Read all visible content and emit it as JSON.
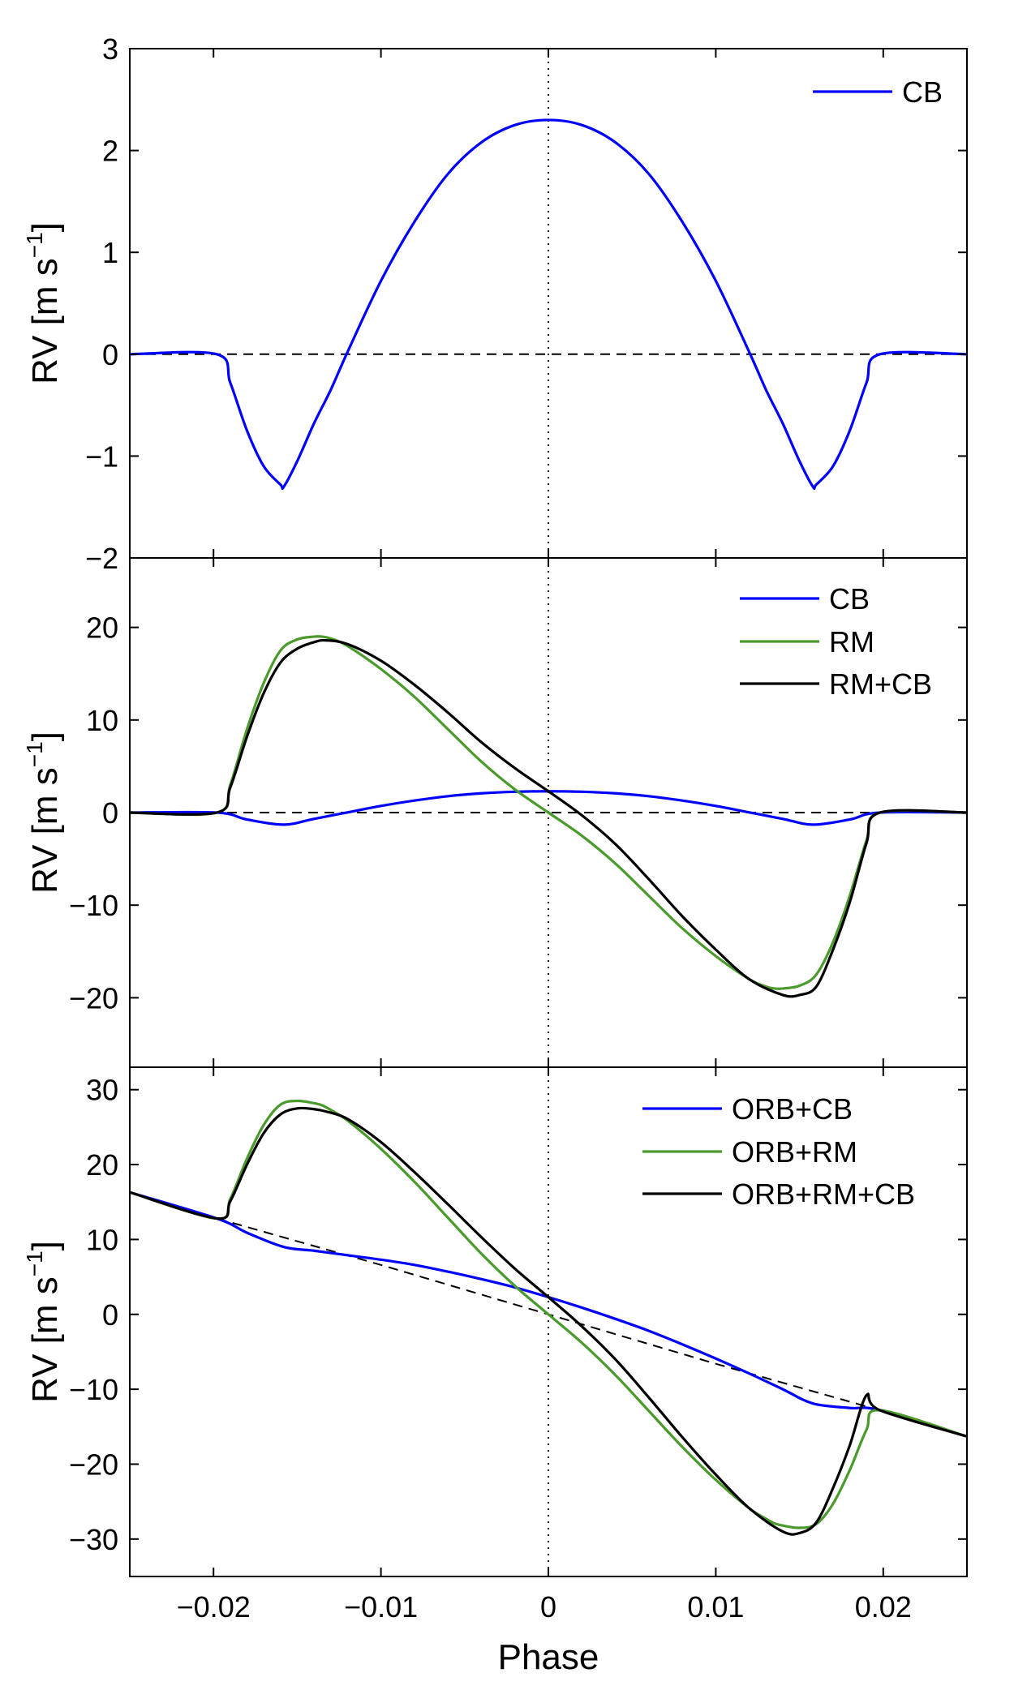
{
  "chart_data": {
    "type": "line",
    "shared_x": {
      "xlabel": "Phase",
      "xlim": [
        -0.025,
        0.025
      ],
      "xticks": [
        -0.02,
        -0.01,
        0,
        0.01,
        0.02
      ],
      "xtick_labels": [
        "−0.02",
        "−0.01",
        "0",
        "0.01",
        "0.02"
      ],
      "vertical_reference": {
        "x": 0,
        "style": "dotted"
      }
    },
    "panels": [
      {
        "id": "top",
        "ylabel": "RV [m s",
        "ylabel_sup": "−1",
        "ylabel_close": "]",
        "ylim": [
          -2,
          3
        ],
        "yticks": [
          -2,
          -1,
          0,
          1,
          2,
          3
        ],
        "ytick_labels": [
          "−2",
          "−1",
          "0",
          "1",
          "2",
          "3"
        ],
        "legend_position": "top-right",
        "reference_line": {
          "name": "zero baseline",
          "style": "dashed",
          "x": [
            -0.025,
            0.025
          ],
          "y": [
            0,
            0
          ]
        },
        "series": [
          {
            "name": "CB",
            "color": "#0000ff",
            "x": [
              -0.025,
              -0.0198,
              -0.019,
              -0.018,
              -0.017,
              -0.016,
              -0.0158,
              -0.015,
              -0.014,
              -0.013,
              -0.012,
              -0.01,
              -0.008,
              -0.006,
              -0.004,
              -0.002,
              0,
              0.002,
              0.004,
              0.006,
              0.008,
              0.01,
              0.012,
              0.013,
              0.014,
              0.015,
              0.0158,
              0.016,
              0.017,
              0.018,
              0.019,
              0.0198,
              0.025
            ],
            "y": [
              0,
              0,
              -0.28,
              -0.75,
              -1.1,
              -1.28,
              -1.3,
              -1.05,
              -0.68,
              -0.35,
              0.02,
              0.72,
              1.3,
              1.77,
              2.08,
              2.25,
              2.3,
              2.25,
              2.08,
              1.77,
              1.3,
              0.72,
              0.02,
              -0.35,
              -0.68,
              -1.05,
              -1.3,
              -1.28,
              -1.1,
              -0.75,
              -0.28,
              0,
              0
            ]
          }
        ]
      },
      {
        "id": "middle",
        "ylabel": "RV [m s",
        "ylabel_sup": "−1",
        "ylabel_close": "]",
        "ylim": [
          -27.5,
          27.5
        ],
        "yticks": [
          -20,
          -10,
          0,
          10,
          20
        ],
        "ytick_labels": [
          "−20",
          "−10",
          "0",
          "10",
          "20"
        ],
        "legend_position": "top-right",
        "reference_line": {
          "name": "zero baseline",
          "style": "dashed",
          "x": [
            -0.025,
            0.025
          ],
          "y": [
            0,
            0
          ]
        },
        "series": [
          {
            "name": "CB",
            "color": "#0000ff",
            "x": [
              -0.025,
              -0.0198,
              -0.018,
              -0.0158,
              -0.014,
              -0.012,
              -0.01,
              -0.008,
              -0.006,
              -0.004,
              -0.002,
              0,
              0.002,
              0.004,
              0.006,
              0.008,
              0.01,
              0.012,
              0.014,
              0.0158,
              0.018,
              0.0198,
              0.025
            ],
            "y": [
              0,
              0,
              -0.75,
              -1.3,
              -0.68,
              0.02,
              0.72,
              1.3,
              1.77,
              2.08,
              2.25,
              2.3,
              2.25,
              2.08,
              1.77,
              1.3,
              0.72,
              0.02,
              -0.68,
              -1.3,
              -0.75,
              0,
              0
            ]
          },
          {
            "name": "RM",
            "color": "#4a9a2c",
            "x": [
              -0.025,
              -0.0198,
              -0.019,
              -0.018,
              -0.017,
              -0.016,
              -0.015,
              -0.014,
              -0.0135,
              -0.013,
              -0.012,
              -0.01,
              -0.008,
              -0.006,
              -0.004,
              -0.002,
              0,
              0.002,
              0.004,
              0.006,
              0.008,
              0.01,
              0.012,
              0.013,
              0.0135,
              0.014,
              0.015,
              0.016,
              0.017,
              0.018,
              0.019,
              0.0198,
              0.025
            ],
            "y": [
              0,
              0,
              3,
              9,
              14,
              17.5,
              18.7,
              19,
              19,
              18.8,
              18,
              15.5,
              12.5,
              9,
              5.5,
              2.5,
              0,
              -2.5,
              -5.5,
              -9,
              -12.5,
              -15.5,
              -18,
              -18.8,
              -19,
              -19,
              -18.7,
              -17.5,
              -14,
              -9,
              -3,
              0,
              0
            ]
          },
          {
            "name": "RM+CB",
            "color": "#000000",
            "x": [
              -0.025,
              -0.0198,
              -0.019,
              -0.018,
              -0.017,
              -0.016,
              -0.015,
              -0.014,
              -0.0133,
              -0.012,
              -0.01,
              -0.008,
              -0.006,
              -0.004,
              -0.002,
              0,
              0.002,
              0.004,
              0.006,
              0.008,
              0.01,
              0.012,
              0.014,
              0.015,
              0.016,
              0.017,
              0.018,
              0.019,
              0.0198,
              0.025
            ],
            "y": [
              0,
              0,
              2.7,
              8.2,
              12.9,
              16.2,
              17.7,
              18.4,
              18.6,
              18.2,
              16.4,
              13.8,
              10.8,
              7.6,
              4.8,
              2.3,
              -0.3,
              -3.4,
              -7.2,
              -11.2,
              -14.8,
              -18,
              -19.7,
              -19.7,
              -18.8,
              -14.8,
              -9.7,
              -3.3,
              0,
              0
            ]
          }
        ]
      },
      {
        "id": "bottom",
        "ylabel": "RV [m s",
        "ylabel_sup": "−1",
        "ylabel_close": "]",
        "ylim": [
          -35,
          33
        ],
        "yticks": [
          -30,
          -20,
          -10,
          0,
          10,
          20,
          30
        ],
        "ytick_labels": [
          "−30",
          "−20",
          "−10",
          "0",
          "10",
          "20",
          "30"
        ],
        "legend_position": "top-right",
        "reference_line": {
          "name": "orbital motion",
          "style": "dashed",
          "x": [
            -0.0198,
            -0.01,
            0,
            0.01,
            0.0198
          ],
          "y": [
            12.8,
            6.6,
            0,
            -6.6,
            -12.8
          ]
        },
        "series": [
          {
            "name": "ORB+CB",
            "color": "#0000ff",
            "x": [
              -0.025,
              -0.0198,
              -0.018,
              -0.0158,
              -0.014,
              -0.012,
              -0.01,
              -0.008,
              -0.006,
              -0.004,
              -0.002,
              0,
              0.002,
              0.004,
              0.006,
              0.008,
              0.01,
              0.012,
              0.014,
              0.0158,
              0.018,
              0.0198,
              0.025
            ],
            "y": [
              16.3,
              12.8,
              10.9,
              9.0,
              8.5,
              7.9,
              7.3,
              6.6,
              5.7,
              4.7,
              3.6,
              2.3,
              0.9,
              -0.6,
              -2.2,
              -4.0,
              -5.9,
              -7.9,
              -10.0,
              -11.9,
              -12.5,
              -12.8,
              -16.3
            ]
          },
          {
            "name": "ORB+RM",
            "color": "#4a9a2c",
            "x": [
              -0.025,
              -0.0198,
              -0.019,
              -0.018,
              -0.017,
              -0.016,
              -0.015,
              -0.014,
              -0.0135,
              -0.013,
              -0.012,
              -0.01,
              -0.008,
              -0.006,
              -0.004,
              -0.002,
              0,
              0.002,
              0.004,
              0.006,
              0.008,
              0.01,
              0.012,
              0.013,
              0.0135,
              0.014,
              0.015,
              0.016,
              0.017,
              0.018,
              0.019,
              0.0198,
              0.025
            ],
            "y": [
              16.3,
              12.8,
              15.4,
              20.8,
              25.3,
              28,
              28.5,
              28.2,
              27.9,
              27.3,
              25.9,
              22.1,
              17.7,
              12.9,
              8.1,
              3.8,
              0,
              -3.8,
              -8.1,
              -12.9,
              -17.7,
              -22.1,
              -25.9,
              -27.3,
              -27.9,
              -28.2,
              -28.5,
              -28,
              -25.3,
              -20.8,
              -15.4,
              -12.8,
              -16.3
            ]
          },
          {
            "name": "ORB+RM+CB",
            "color": "#000000",
            "x": [
              -0.025,
              -0.0198,
              -0.019,
              -0.018,
              -0.017,
              -0.016,
              -0.015,
              -0.014,
              -0.0133,
              -0.012,
              -0.01,
              -0.008,
              -0.006,
              -0.004,
              -0.002,
              0,
              0.002,
              0.004,
              0.006,
              0.008,
              0.01,
              0.012,
              0.014,
              0.015,
              0.016,
              0.017,
              0.018,
              0.019,
              0.0198,
              0.025
            ],
            "y": [
              16.3,
              12.8,
              15.1,
              20.0,
              24.2,
              26.7,
              27.5,
              27.4,
              27.1,
              26.1,
              23.0,
              19.0,
              14.7,
              10.3,
              6.1,
              2.3,
              -1.6,
              -6.0,
              -11.1,
              -16.4,
              -21.4,
              -25.9,
              -29.0,
              -29.2,
              -27.8,
              -23.2,
              -17.5,
              -10.8,
              -12.8,
              -16.3
            ]
          }
        ]
      }
    ]
  }
}
